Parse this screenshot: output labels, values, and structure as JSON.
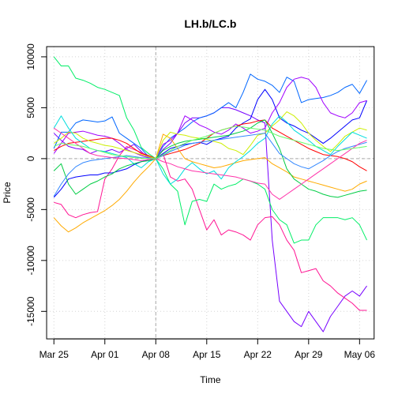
{
  "chart_data": {
    "type": "line",
    "title": "LH.b/LC.b",
    "xlabel": "Time",
    "ylabel": "Price",
    "x_tick_labels": [
      "Mar 25",
      "Apr 01",
      "Apr 08",
      "Apr 15",
      "Apr 22",
      "Apr 29",
      "May 06"
    ],
    "x_tick_days": [
      0,
      7,
      14,
      21,
      28,
      35,
      42
    ],
    "y_ticks": [
      -15000,
      -10000,
      -5000,
      0,
      5000,
      10000
    ],
    "xlim": [
      -1,
      44
    ],
    "ylim": [
      -17700,
      11000
    ],
    "grid": true,
    "reference_lines": {
      "vertical_day": 14,
      "horizontal_value": 0
    },
    "x": [
      0,
      1,
      2,
      3,
      4,
      5,
      6,
      7,
      8,
      9,
      10,
      11,
      12,
      13,
      14,
      15,
      16,
      17,
      18,
      19,
      20,
      21,
      22,
      23,
      24,
      25,
      26,
      27,
      28,
      29,
      30,
      31,
      32,
      33,
      34,
      35,
      36,
      37,
      38,
      39,
      40,
      41,
      42,
      43
    ],
    "series": [
      {
        "color": "#7700ff",
        "values": [
          2500,
          1800,
          1200,
          1000,
          900,
          500,
          800,
          700,
          900,
          600,
          1000,
          1400,
          700,
          100,
          0,
          900,
          1500,
          2500,
          3500,
          4000,
          4000,
          4200,
          4500,
          5000,
          5000,
          4800,
          4500,
          4200,
          3800,
          3500,
          -8000,
          -14000,
          -15000,
          -16000,
          -16500,
          -15000,
          -16000,
          -17000,
          -15500,
          -14500,
          -13500,
          -13000,
          -13500,
          -12500
        ]
      },
      {
        "color": "#ff1493",
        "values": [
          -4300,
          -4500,
          -5500,
          -5800,
          -5500,
          -5300,
          -5200,
          -2000,
          -1000,
          300,
          1200,
          900,
          600,
          300,
          0,
          500,
          -1800,
          -2200,
          -2000,
          -3000,
          -5000,
          -7000,
          -6000,
          -7500,
          -7000,
          -7200,
          -7500,
          -8000,
          -6500,
          -5800,
          -5700,
          -6500,
          -8000,
          -9000,
          -11200,
          -11000,
          -10800,
          -12000,
          -12500,
          -13200,
          -13700,
          -14200,
          -14900,
          -14900
        ]
      },
      {
        "color": "#00ee66",
        "values": [
          10000,
          9100,
          9100,
          7900,
          7700,
          7400,
          7000,
          6800,
          6500,
          6200,
          4000,
          2800,
          1100,
          500,
          0,
          -1000,
          -2500,
          -3200,
          -6500,
          -4200,
          -4000,
          -4200,
          -2500,
          -3000,
          -2700,
          -2500,
          -2000,
          -2200,
          -2500,
          -3000,
          -5000,
          -6000,
          -6500,
          -8300,
          -8000,
          -8000,
          -6500,
          -5800,
          -5800,
          -5800,
          -6000,
          -5800,
          -6500,
          -8000
        ]
      },
      {
        "color": "#0000ff",
        "values": [
          -3800,
          -3000,
          -2000,
          -1800,
          -1700,
          -1600,
          -1600,
          -1400,
          -1400,
          -1200,
          -1000,
          -600,
          -300,
          -100,
          0,
          500,
          1000,
          1200,
          1400,
          1500,
          1600,
          1400,
          1800,
          2000,
          2200,
          3000,
          3500,
          3900,
          5800,
          6800,
          5800,
          4000,
          3500,
          3200,
          2800,
          2500,
          2000,
          1500,
          2000,
          2600,
          3200,
          3800,
          4000,
          5700
        ]
      },
      {
        "color": "#0066ff",
        "values": [
          1000,
          2600,
          2600,
          3500,
          3800,
          3700,
          3600,
          3700,
          4100,
          2500,
          2000,
          1500,
          1000,
          200,
          0,
          1200,
          2000,
          2500,
          3000,
          3600,
          4000,
          4200,
          4500,
          5000,
          5500,
          5000,
          6500,
          8300,
          7800,
          7600,
          7200,
          6500,
          8000,
          7600,
          5500,
          5800,
          5900,
          6000,
          6200,
          6500,
          7000,
          7300,
          6400,
          7700
        ]
      },
      {
        "color": "#a000ff",
        "values": [
          500,
          1500,
          2500,
          2600,
          2700,
          2500,
          2300,
          2200,
          2000,
          1500,
          900,
          600,
          300,
          100,
          0,
          1400,
          1800,
          2500,
          4200,
          3800,
          3300,
          3000,
          2600,
          2400,
          2800,
          3400,
          3000,
          2500,
          2700,
          3000,
          4500,
          5500,
          7000,
          7800,
          8000,
          7800,
          7000,
          5500,
          4500,
          4200,
          4000,
          4500,
          5500,
          5700
        ]
      },
      {
        "color": "#ff0000",
        "values": [
          800,
          1200,
          1500,
          1600,
          1700,
          1800,
          1900,
          2000,
          2000,
          1800,
          1500,
          1000,
          500,
          300,
          0,
          300,
          500,
          700,
          900,
          1200,
          1500,
          2000,
          2500,
          2800,
          3000,
          3200,
          3400,
          3500,
          3700,
          3800,
          3000,
          2600,
          2200,
          1800,
          1400,
          1000,
          700,
          400,
          300,
          200,
          0,
          -300,
          -800,
          -1200
        ]
      },
      {
        "color": "#ffaa00",
        "values": [
          -5800,
          -6600,
          -7200,
          -6800,
          -6300,
          -5900,
          -5500,
          -5100,
          -4600,
          -4000,
          -3200,
          -2300,
          -1500,
          -800,
          0,
          2400,
          2000,
          1000,
          0,
          -300,
          -500,
          -700,
          -900,
          -800,
          -600,
          -400,
          -200,
          -100,
          0,
          100,
          -500,
          -900,
          -1300,
          -1800,
          -2000,
          -2200,
          -2400,
          -2600,
          -2800,
          -3000,
          -3200,
          -3000,
          -2500,
          -2200
        ]
      },
      {
        "color": "#ccee00",
        "values": [
          1500,
          2000,
          2600,
          2500,
          2000,
          1700,
          1500,
          1300,
          1200,
          1000,
          800,
          600,
          400,
          200,
          0,
          1800,
          2600,
          2400,
          2300,
          2100,
          2000,
          1900,
          1700,
          1500,
          1000,
          800,
          400,
          1300,
          2300,
          2500,
          3200,
          3800,
          4600,
          4200,
          3500,
          2500,
          1800,
          1200,
          700,
          1400,
          2200,
          2600,
          3000,
          2800
        ]
      },
      {
        "color": "#00dddd",
        "values": [
          3000,
          4200,
          3000,
          2000,
          1500,
          1000,
          800,
          700,
          500,
          300,
          100,
          -500,
          -900,
          -300,
          0,
          -1500,
          -2500,
          -2000,
          -1000,
          -400,
          -1000,
          -1500,
          -1200,
          -2000,
          -900,
          -300,
          200,
          800,
          1500,
          2000,
          3400,
          4200,
          3600,
          2800,
          2300,
          1800,
          1200,
          800,
          400,
          1200,
          1900,
          2600,
          2300,
          2000
        ]
      },
      {
        "color": "#00cc44",
        "values": [
          -1200,
          -500,
          -2500,
          -3500,
          -3000,
          -2500,
          -2200,
          -1800,
          -1500,
          -1000,
          -700,
          -500,
          -300,
          -200,
          0,
          800,
          1200,
          1500,
          1700,
          1800,
          1900,
          2000,
          2100,
          2200,
          2300,
          2500,
          2700,
          3000,
          3500,
          3800,
          2500,
          1000,
          -1000,
          -2000,
          -2500,
          -3000,
          -3200,
          -3500,
          -3700,
          -3800,
          -3600,
          -3400,
          -3200,
          -3100
        ]
      },
      {
        "color": "#3388ff",
        "values": [
          -3700,
          -2500,
          -1500,
          -800,
          -400,
          -200,
          -100,
          0,
          100,
          200,
          300,
          200,
          100,
          50,
          0,
          300,
          700,
          1000,
          1300,
          1500,
          1600,
          1700,
          1800,
          1900,
          2000,
          2100,
          2200,
          2300,
          2400,
          2500,
          1500,
          500,
          0,
          -500,
          -800,
          -1000,
          -600,
          -200,
          300,
          700,
          1000,
          1200,
          1400,
          1600
        ]
      },
      {
        "color": "#ff33aa",
        "values": [
          3000,
          2500,
          2000,
          1500,
          1000,
          500,
          300,
          200,
          100,
          50,
          0,
          -100,
          -200,
          -100,
          0,
          -300,
          -500,
          -800,
          -1000,
          -1200,
          -1300,
          -1400,
          -1500,
          -1600,
          -1700,
          -1800,
          -2000,
          -2200,
          -2400,
          -2500,
          -3500,
          -4000,
          -3500,
          -3000,
          -2500,
          -2000,
          -1500,
          -1000,
          -500,
          0,
          500,
          1000,
          1500,
          1800
        ]
      },
      {
        "color": "#66ff66",
        "values": [
          1200,
          1500,
          1400,
          1300,
          1200,
          1000,
          800,
          600,
          400,
          300,
          200,
          100,
          50,
          20,
          0,
          400,
          800,
          1200,
          1500,
          1800,
          2000,
          2200,
          2500,
          2800,
          3000,
          3200,
          3100,
          3000,
          2900,
          2800,
          2500,
          2200,
          2000,
          1800,
          1600,
          1400,
          1200,
          1000,
          900,
          800,
          900,
          1000,
          1100,
          1200
        ]
      }
    ]
  }
}
